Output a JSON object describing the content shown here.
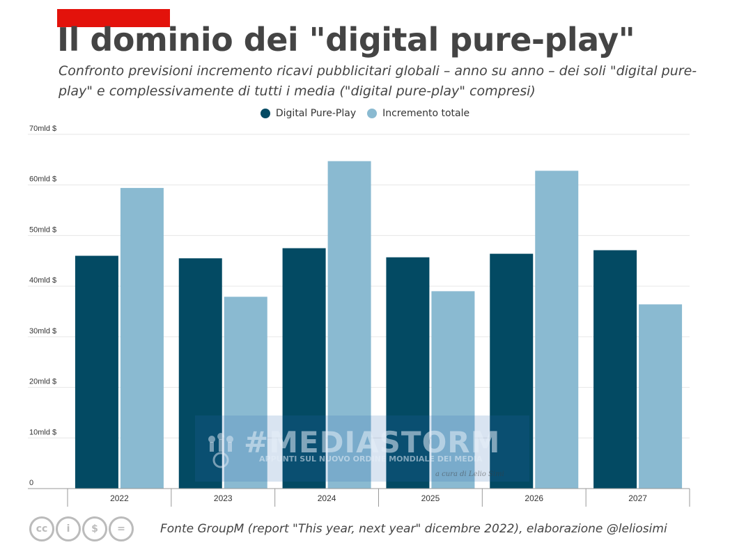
{
  "title": "Il dominio dei \"digital pure-play\"",
  "subtitle": "Confronto previsioni incremento ricavi pubblicitari globali – anno su anno – dei soli \"digital pure-play\" e complessivamente di tutti i media (\"digital pure-play\" compresi)",
  "colors": {
    "accent": "#e3120b",
    "series1": "#034a63",
    "series2": "#8abad1"
  },
  "watermark": {
    "title": "#MEDIASTORM",
    "subtitle": "APPUNTI SUL NUOVO ORDINE MONDIALE DEI MEDIA",
    "credit": "a cura di Lelio Simi"
  },
  "footer": {
    "license_icons": [
      "cc-icon",
      "by-icon",
      "nc-icon",
      "nd-icon"
    ],
    "license_glyphs": [
      "cc",
      "i",
      "$",
      "="
    ],
    "source": "Fonte GroupM (report \"This year, next year\" dicembre 2022), elaborazione @leliosimi"
  },
  "chart_data": {
    "type": "bar",
    "categories": [
      "2022",
      "2023",
      "2024",
      "2025",
      "2026",
      "2027"
    ],
    "series": [
      {
        "name": "Digital Pure-Play",
        "values": [
          46.0,
          45.5,
          47.5,
          45.7,
          46.4,
          47.1
        ]
      },
      {
        "name": "Incremento totale",
        "values": [
          59.4,
          37.9,
          64.7,
          39.0,
          62.8,
          36.4
        ]
      }
    ],
    "ylim": [
      0,
      70
    ],
    "yticks": [
      0,
      10,
      20,
      30,
      40,
      50,
      60,
      70
    ],
    "ytick_labels": [
      "0",
      "10mld $",
      "20mld $",
      "30mld $",
      "40mld $",
      "50mld $",
      "60mld $",
      "70mld $"
    ],
    "grid": true,
    "legend_position": "top-center"
  }
}
